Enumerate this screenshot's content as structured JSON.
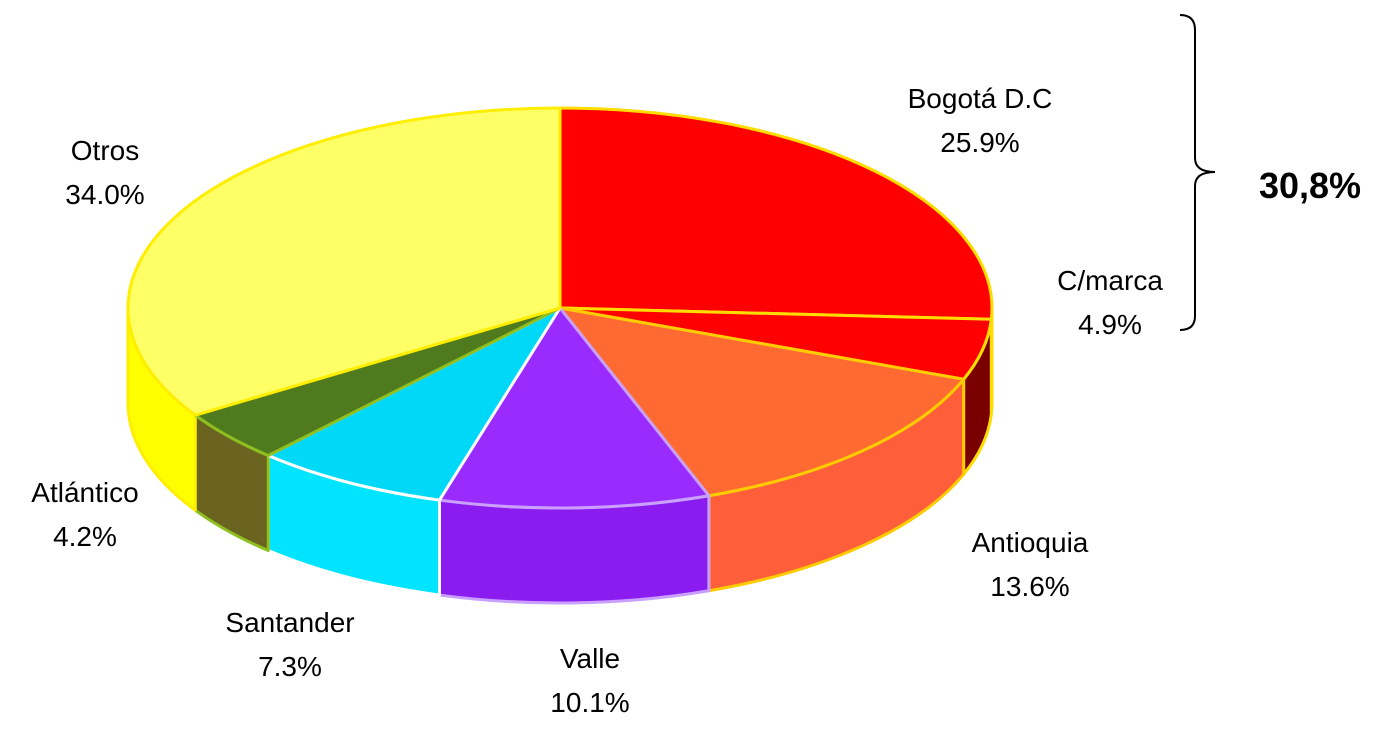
{
  "chart_data": {
    "type": "pie",
    "categories": [
      "Bogotá D.C",
      "C/marca",
      "Antioquia",
      "Valle",
      "Santander",
      "Atlántico",
      "Otros"
    ],
    "values": [
      25.9,
      4.9,
      13.6,
      10.1,
      7.3,
      4.2,
      34.0
    ],
    "value_labels": [
      "25.9%",
      "4.9%",
      "13.6%",
      "10.1%",
      "7.3%",
      "4.2%",
      "34.0%"
    ],
    "colors": [
      "#ff0000",
      "#ff0000",
      "#ff6a33",
      "#9a2bff",
      "#00d8f8",
      "#4f7a1e",
      "#ffff66"
    ],
    "side_colors": [
      "#cc0000",
      "#7a0000",
      "#ff5e3a",
      "#8a1cf0",
      "#00e4ff",
      "#6b6420",
      "#ffff00"
    ],
    "edge_colors": [
      "#ffdd00",
      "#ffdd00",
      "#ffcc00",
      "#c9a0ff",
      "#ffffff",
      "#8fbf1f",
      "#ffee00"
    ],
    "annotation": "30,8%"
  }
}
